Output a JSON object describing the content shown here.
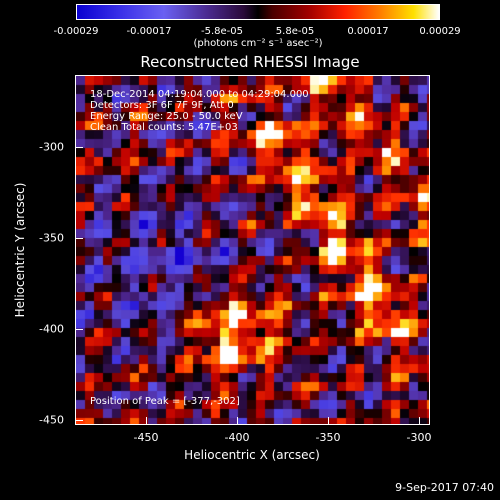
{
  "colorbar": {
    "ticks": [
      "-0.00029",
      "-0.00017",
      "-5.8e-05",
      "5.8e-05",
      "0.00017",
      "0.00029"
    ],
    "units": "(photons cm⁻² s⁻¹ asec⁻²)",
    "colors": [
      "#0a00d0",
      "#000000",
      "#ff2000",
      "#ffe000",
      "#ffffff"
    ]
  },
  "title": "Reconstructed RHESSI Image",
  "annotations": {
    "time_range": "18-Dec-2014 04:19:04.000 to 04:29:04.000",
    "detectors": "Detectors: 3F 6F 7F 9F, Att 0",
    "energy": "Energy Range: 25.0 - 50.0 keV",
    "clean": "Clean     Total counts: 5.47E+03",
    "peak": "Position of Peak = [-377,-302]"
  },
  "axes": {
    "xlabel": "Heliocentric X (arcsec)",
    "ylabel": "Heliocentric Y (arcsec)",
    "xticks": [
      "-450",
      "-400",
      "-350",
      "-300"
    ],
    "yticks": [
      "-300",
      "-350",
      "-400",
      "-450"
    ],
    "xlim": [
      -490,
      -295
    ],
    "ylim": [
      -452,
      -260
    ]
  },
  "footer": "9-Sep-2017 07:40"
}
